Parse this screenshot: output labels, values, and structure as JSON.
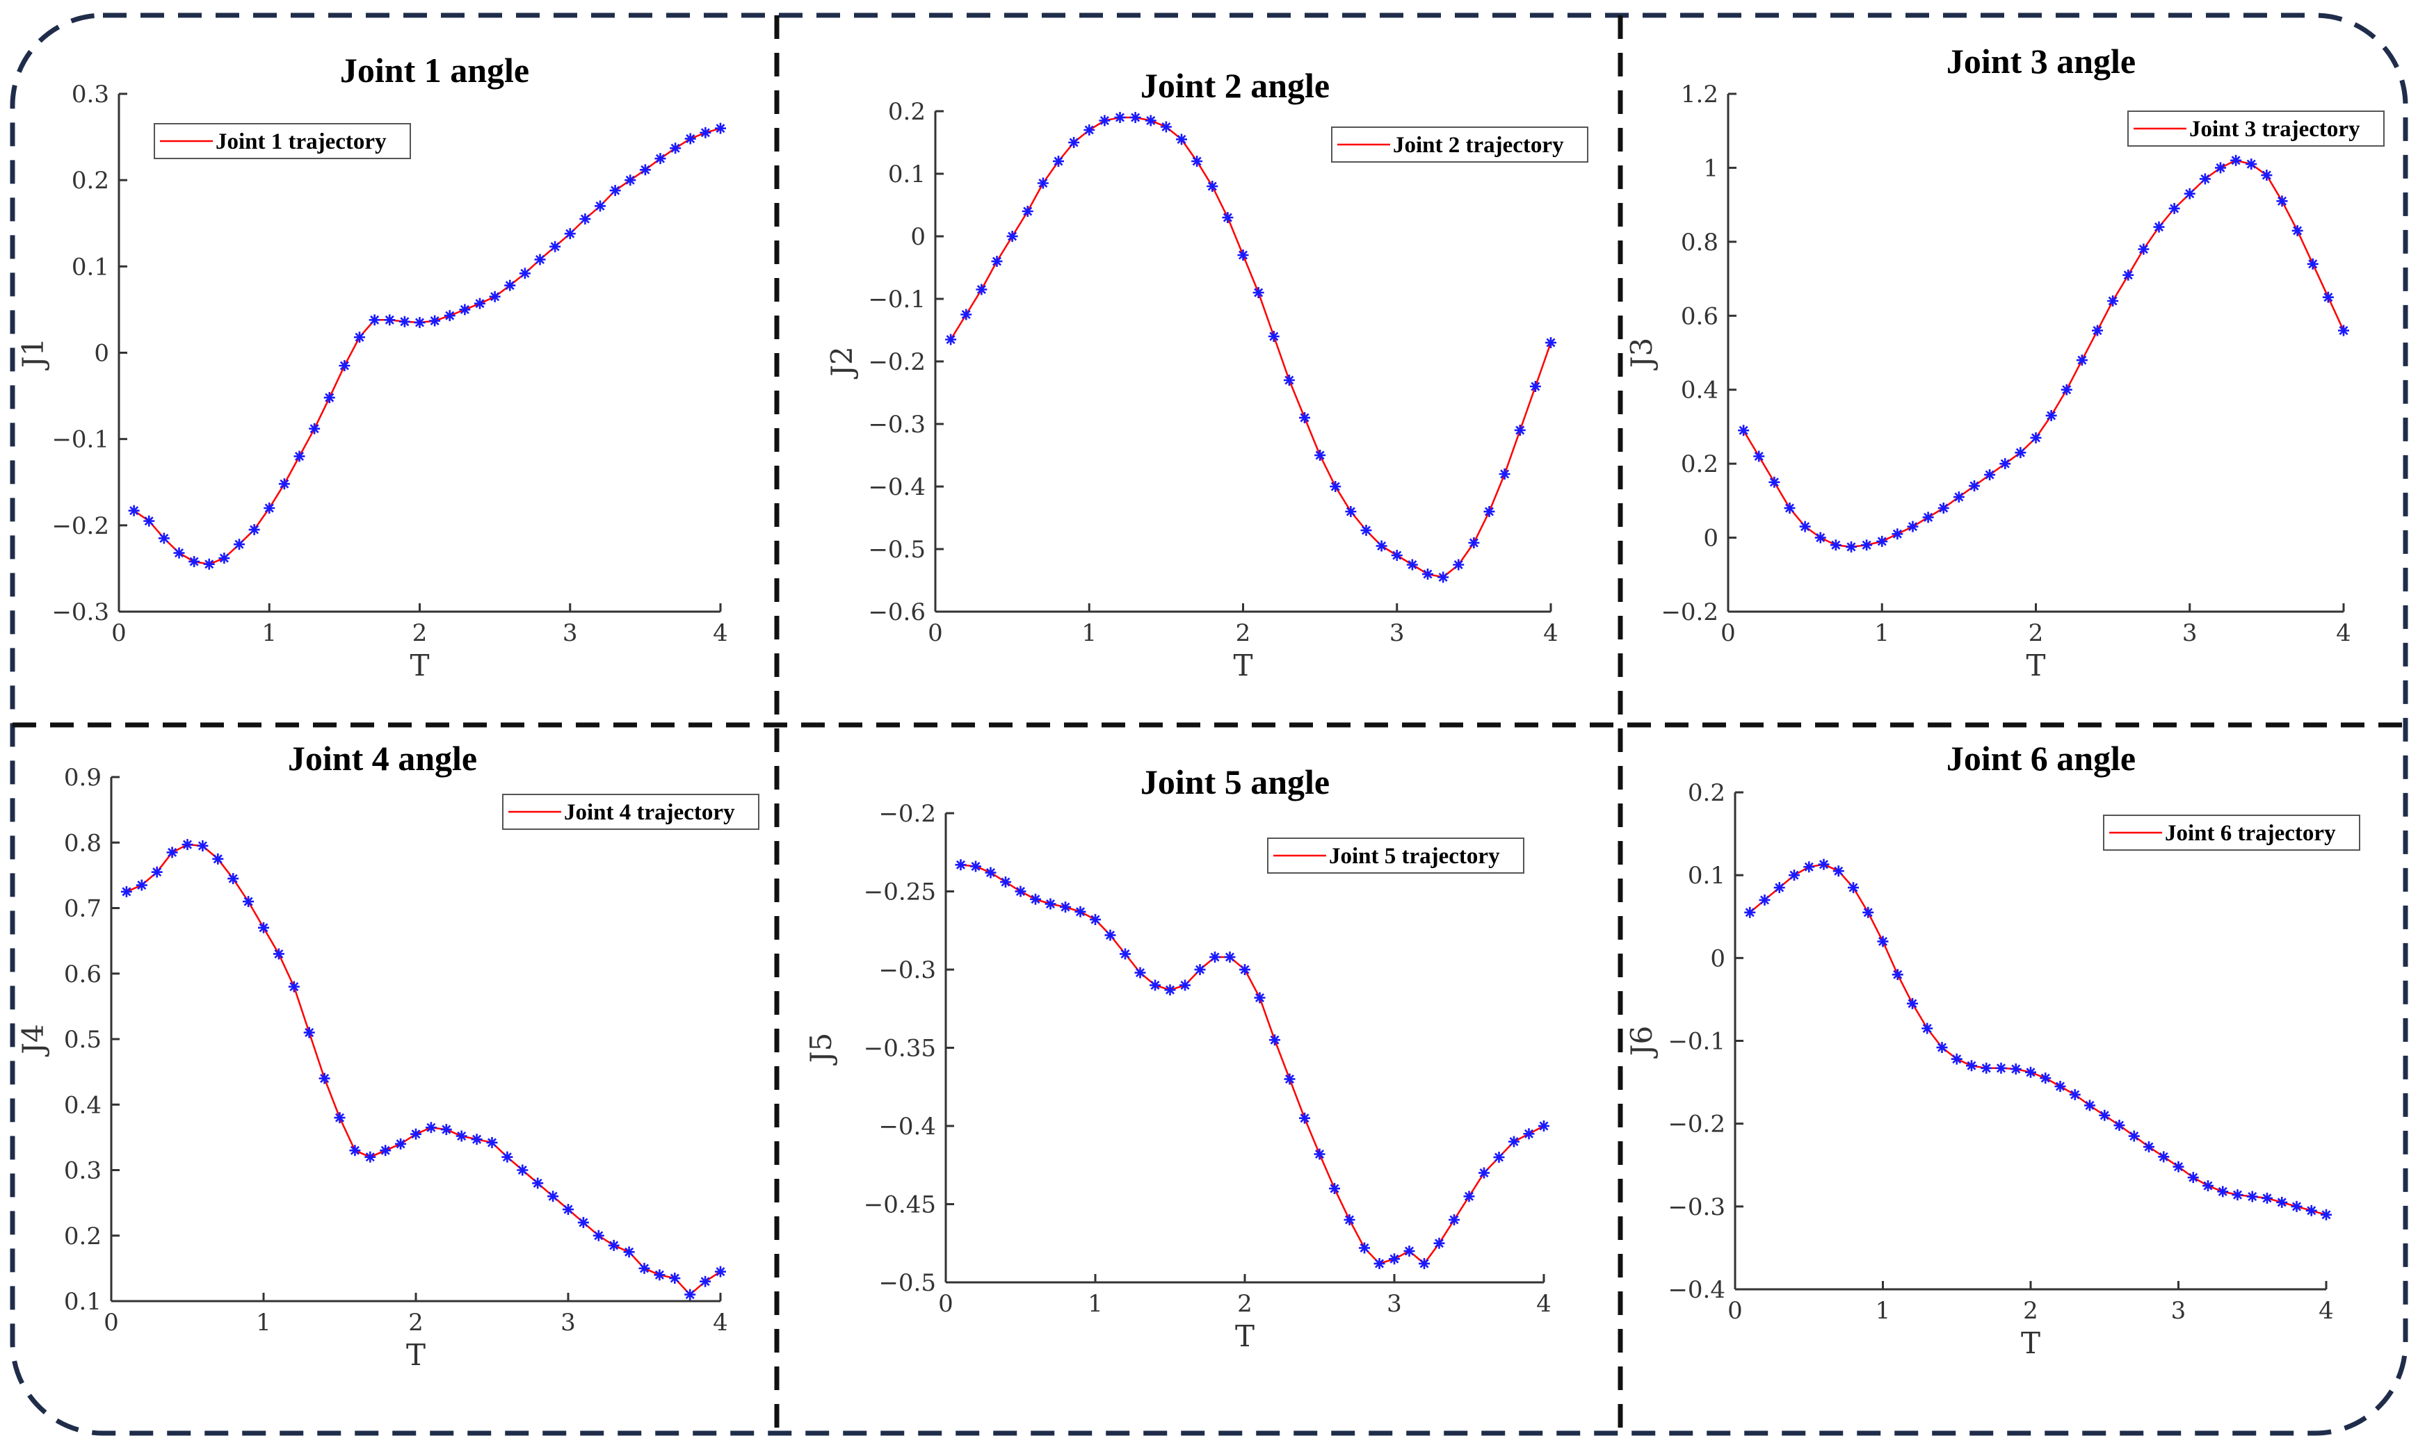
{
  "chart_data": [
    {
      "type": "line",
      "title": "Joint 1 angle",
      "xlabel": "T",
      "ylabel": "J1",
      "xlim": [
        0,
        4
      ],
      "ylim": [
        -0.3,
        0.3
      ],
      "xticks": [
        0,
        1,
        2,
        3,
        4
      ],
      "yticks": [
        -0.3,
        -0.2,
        -0.1,
        0,
        0.1,
        0.2,
        0.3
      ],
      "yticklabels": [
        "−0.3",
        "−0.2",
        "−0.1",
        "0",
        "0.1",
        "0.2",
        "0.3"
      ],
      "legend_position": "top-left",
      "series": [
        {
          "name": "Joint 1 trajectory",
          "line_color": "#ff0000",
          "marker_color": "#1a1aff",
          "x": [
            0.1,
            0.2,
            0.3,
            0.4,
            0.5,
            0.6,
            0.7,
            0.8,
            0.9,
            1.0,
            1.1,
            1.2,
            1.3,
            1.4,
            1.5,
            1.6,
            1.7,
            1.8,
            1.9,
            2.0,
            2.1,
            2.2,
            2.3,
            2.4,
            2.5,
            2.6,
            2.7,
            2.8,
            2.9,
            3.0,
            3.1,
            3.2,
            3.3,
            3.4,
            3.5,
            3.6,
            3.7,
            3.8,
            3.9,
            4.0
          ],
          "y": [
            -0.183,
            -0.195,
            -0.215,
            -0.232,
            -0.242,
            -0.245,
            -0.238,
            -0.222,
            -0.205,
            -0.18,
            -0.152,
            -0.12,
            -0.088,
            -0.052,
            -0.015,
            0.018,
            0.038,
            0.038,
            0.036,
            0.035,
            0.037,
            0.043,
            0.05,
            0.057,
            0.065,
            0.078,
            0.092,
            0.108,
            0.123,
            0.138,
            0.155,
            0.17,
            0.188,
            0.2,
            0.212,
            0.225,
            0.237,
            0.248,
            0.255,
            0.26
          ]
        }
      ]
    },
    {
      "type": "line",
      "title": "Joint 2 angle",
      "xlabel": "T",
      "ylabel": "J2",
      "xlim": [
        0,
        4
      ],
      "ylim": [
        -0.6,
        0.2
      ],
      "xticks": [
        0,
        1,
        2,
        3,
        4
      ],
      "yticks": [
        -0.6,
        -0.5,
        -0.4,
        -0.3,
        -0.2,
        -0.1,
        0,
        0.1,
        0.2
      ],
      "yticklabels": [
        "−0.6",
        "−0.5",
        "−0.4",
        "−0.3",
        "−0.2",
        "−0.1",
        "0",
        "0.1",
        "0.2"
      ],
      "legend_position": "top-right",
      "series": [
        {
          "name": "Joint 2 trajectory",
          "line_color": "#ff0000",
          "marker_color": "#1a1aff",
          "x": [
            0.1,
            0.2,
            0.3,
            0.4,
            0.5,
            0.6,
            0.7,
            0.8,
            0.9,
            1.0,
            1.1,
            1.2,
            1.3,
            1.4,
            1.5,
            1.6,
            1.7,
            1.8,
            1.9,
            2.0,
            2.1,
            2.2,
            2.3,
            2.4,
            2.5,
            2.6,
            2.7,
            2.8,
            2.9,
            3.0,
            3.1,
            3.2,
            3.3,
            3.4,
            3.5,
            3.6,
            3.7,
            3.8,
            3.9,
            4.0
          ],
          "y": [
            -0.165,
            -0.125,
            -0.085,
            -0.04,
            0.0,
            0.04,
            0.085,
            0.12,
            0.15,
            0.17,
            0.185,
            0.19,
            0.19,
            0.185,
            0.175,
            0.155,
            0.12,
            0.08,
            0.03,
            -0.03,
            -0.09,
            -0.16,
            -0.23,
            -0.29,
            -0.35,
            -0.4,
            -0.44,
            -0.47,
            -0.495,
            -0.51,
            -0.525,
            -0.54,
            -0.545,
            -0.525,
            -0.49,
            -0.44,
            -0.38,
            -0.31,
            -0.24,
            -0.17
          ]
        }
      ]
    },
    {
      "type": "line",
      "title": "Joint 3 angle",
      "xlabel": "T",
      "ylabel": "J3",
      "xlim": [
        0,
        4
      ],
      "ylim": [
        -0.2,
        1.2
      ],
      "xticks": [
        0,
        1,
        2,
        3,
        4
      ],
      "yticks": [
        -0.2,
        0,
        0.2,
        0.4,
        0.6,
        0.8,
        1,
        1.2
      ],
      "yticklabels": [
        "−0.2",
        "0",
        "0.2",
        "0.4",
        "0.6",
        "0.8",
        "1",
        "1.2"
      ],
      "legend_position": "top-right",
      "series": [
        {
          "name": "Joint 3 trajectory",
          "line_color": "#ff0000",
          "marker_color": "#1a1aff",
          "x": [
            0.1,
            0.2,
            0.3,
            0.4,
            0.5,
            0.6,
            0.7,
            0.8,
            0.9,
            1.0,
            1.1,
            1.2,
            1.3,
            1.4,
            1.5,
            1.6,
            1.7,
            1.8,
            1.9,
            2.0,
            2.1,
            2.2,
            2.3,
            2.4,
            2.5,
            2.6,
            2.7,
            2.8,
            2.9,
            3.0,
            3.1,
            3.2,
            3.3,
            3.4,
            3.5,
            3.6,
            3.7,
            3.8,
            3.9,
            4.0
          ],
          "y": [
            0.29,
            0.22,
            0.15,
            0.08,
            0.03,
            0.0,
            -0.02,
            -0.025,
            -0.02,
            -0.01,
            0.01,
            0.03,
            0.055,
            0.08,
            0.11,
            0.14,
            0.17,
            0.2,
            0.23,
            0.27,
            0.33,
            0.4,
            0.48,
            0.56,
            0.64,
            0.71,
            0.78,
            0.84,
            0.89,
            0.93,
            0.97,
            1.0,
            1.02,
            1.01,
            0.98,
            0.91,
            0.83,
            0.74,
            0.65,
            0.56
          ]
        }
      ]
    },
    {
      "type": "line",
      "title": "Joint 4 angle",
      "xlabel": "T",
      "ylabel": "J4",
      "xlim": [
        0,
        4
      ],
      "ylim": [
        0.1,
        0.9
      ],
      "xticks": [
        0,
        1,
        2,
        3,
        4
      ],
      "yticks": [
        0.1,
        0.2,
        0.3,
        0.4,
        0.5,
        0.6,
        0.7,
        0.8,
        0.9
      ],
      "yticklabels": [
        "0.1",
        "0.2",
        "0.3",
        "0.4",
        "0.5",
        "0.6",
        "0.7",
        "0.8",
        "0.9"
      ],
      "legend_position": "top-right",
      "series": [
        {
          "name": "Joint 4 trajectory",
          "line_color": "#ff0000",
          "marker_color": "#1a1aff",
          "x": [
            0.1,
            0.2,
            0.3,
            0.4,
            0.5,
            0.6,
            0.7,
            0.8,
            0.9,
            1.0,
            1.1,
            1.2,
            1.3,
            1.4,
            1.5,
            1.6,
            1.7,
            1.8,
            1.9,
            2.0,
            2.1,
            2.2,
            2.3,
            2.4,
            2.5,
            2.6,
            2.7,
            2.8,
            2.9,
            3.0,
            3.1,
            3.2,
            3.3,
            3.4,
            3.5,
            3.6,
            3.7,
            3.8,
            3.9,
            4.0
          ],
          "y": [
            0.725,
            0.735,
            0.755,
            0.785,
            0.797,
            0.795,
            0.775,
            0.745,
            0.71,
            0.67,
            0.63,
            0.58,
            0.51,
            0.44,
            0.38,
            0.33,
            0.32,
            0.33,
            0.34,
            0.355,
            0.365,
            0.362,
            0.352,
            0.347,
            0.342,
            0.32,
            0.3,
            0.28,
            0.26,
            0.24,
            0.22,
            0.2,
            0.185,
            0.175,
            0.15,
            0.14,
            0.135,
            0.11,
            0.13,
            0.145
          ]
        }
      ]
    },
    {
      "type": "line",
      "title": "Joint 5 angle",
      "xlabel": "T",
      "ylabel": "J5",
      "xlim": [
        0,
        4
      ],
      "ylim": [
        -0.5,
        -0.2
      ],
      "xticks": [
        0,
        1,
        2,
        3,
        4
      ],
      "yticks": [
        -0.5,
        -0.45,
        -0.4,
        -0.35,
        -0.3,
        -0.25,
        -0.2
      ],
      "yticklabels": [
        "−0.5",
        "−0.45",
        "−0.4",
        "−0.35",
        "−0.3",
        "−0.25",
        "−0.2"
      ],
      "legend_position": "top-right",
      "series": [
        {
          "name": "Joint 5 trajectory",
          "line_color": "#ff0000",
          "marker_color": "#1a1aff",
          "x": [
            0.1,
            0.2,
            0.3,
            0.4,
            0.5,
            0.6,
            0.7,
            0.8,
            0.9,
            1.0,
            1.1,
            1.2,
            1.3,
            1.4,
            1.5,
            1.6,
            1.7,
            1.8,
            1.9,
            2.0,
            2.1,
            2.2,
            2.3,
            2.4,
            2.5,
            2.6,
            2.7,
            2.8,
            2.9,
            3.0,
            3.1,
            3.2,
            3.3,
            3.4,
            3.5,
            3.6,
            3.7,
            3.8,
            3.9,
            4.0
          ],
          "y": [
            -0.233,
            -0.234,
            -0.238,
            -0.244,
            -0.25,
            -0.255,
            -0.258,
            -0.26,
            -0.263,
            -0.268,
            -0.278,
            -0.29,
            -0.302,
            -0.31,
            -0.313,
            -0.31,
            -0.3,
            -0.292,
            -0.292,
            -0.3,
            -0.318,
            -0.345,
            -0.37,
            -0.395,
            -0.418,
            -0.44,
            -0.46,
            -0.478,
            -0.488,
            -0.485,
            -0.48,
            -0.488,
            -0.475,
            -0.46,
            -0.445,
            -0.43,
            -0.42,
            -0.41,
            -0.405,
            -0.4
          ]
        }
      ]
    },
    {
      "type": "line",
      "title": "Joint 6 angle",
      "xlabel": "T",
      "ylabel": "J6",
      "xlim": [
        0,
        4
      ],
      "ylim": [
        -0.4,
        0.2
      ],
      "xticks": [
        0,
        1,
        2,
        3,
        4
      ],
      "yticks": [
        -0.4,
        -0.3,
        -0.2,
        -0.1,
        0,
        0.1,
        0.2
      ],
      "yticklabels": [
        "−0.4",
        "−0.3",
        "−0.2",
        "−0.1",
        "0",
        "0.1",
        "0.2"
      ],
      "legend_position": "top-right",
      "series": [
        {
          "name": "Joint 6 trajectory",
          "line_color": "#ff0000",
          "marker_color": "#1a1aff",
          "x": [
            0.1,
            0.2,
            0.3,
            0.4,
            0.5,
            0.6,
            0.7,
            0.8,
            0.9,
            1.0,
            1.1,
            1.2,
            1.3,
            1.4,
            1.5,
            1.6,
            1.7,
            1.8,
            1.9,
            2.0,
            2.1,
            2.2,
            2.3,
            2.4,
            2.5,
            2.6,
            2.7,
            2.8,
            2.9,
            3.0,
            3.1,
            3.2,
            3.3,
            3.4,
            3.5,
            3.6,
            3.7,
            3.8,
            3.9,
            4.0
          ],
          "y": [
            0.055,
            0.07,
            0.085,
            0.1,
            0.11,
            0.113,
            0.105,
            0.085,
            0.055,
            0.02,
            -0.02,
            -0.055,
            -0.085,
            -0.108,
            -0.122,
            -0.13,
            -0.133,
            -0.133,
            -0.134,
            -0.138,
            -0.145,
            -0.155,
            -0.165,
            -0.178,
            -0.19,
            -0.202,
            -0.215,
            -0.228,
            -0.24,
            -0.252,
            -0.265,
            -0.275,
            -0.282,
            -0.286,
            -0.288,
            -0.29,
            -0.295,
            -0.3,
            -0.305,
            -0.31
          ]
        }
      ]
    }
  ],
  "frame": {
    "border_color": "#1f2d4a",
    "divider_color": "#111111"
  }
}
